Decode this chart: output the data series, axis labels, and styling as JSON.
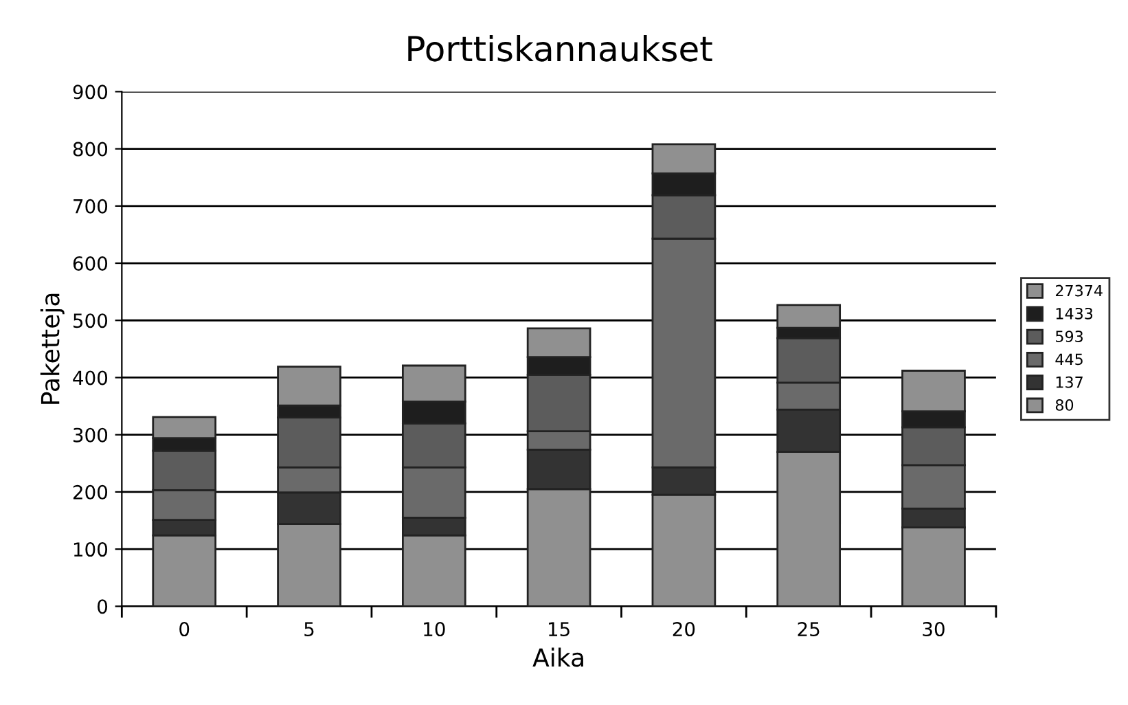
{
  "chart_data": {
    "type": "bar",
    "title": "Porttiskannaukset",
    "xlabel": "Aika",
    "ylabel": "Paketteja",
    "stacked": true,
    "categories": [
      "0",
      "5",
      "10",
      "15",
      "20",
      "25",
      "30"
    ],
    "series": [
      {
        "name": "80",
        "color": "#909090",
        "values": [
          124,
          144,
          124,
          205,
          195,
          270,
          138
        ]
      },
      {
        "name": "137",
        "color": "#333333",
        "values": [
          27,
          55,
          31,
          69,
          48,
          74,
          33
        ]
      },
      {
        "name": "445",
        "color": "#6a6a6a",
        "values": [
          52,
          44,
          88,
          32,
          400,
          47,
          76
        ]
      },
      {
        "name": "593",
        "color": "#5c5c5c",
        "values": [
          69,
          87,
          77,
          99,
          76,
          78,
          66
        ]
      },
      {
        "name": "1433",
        "color": "#1e1e1e",
        "values": [
          22,
          21,
          38,
          31,
          38,
          18,
          28
        ]
      },
      {
        "name": "27374",
        "color": "#909090",
        "values": [
          37,
          68,
          63,
          50,
          51,
          40,
          71
        ]
      }
    ],
    "ylim": [
      0,
      900
    ],
    "yticks": [
      0,
      100,
      200,
      300,
      400,
      500,
      600,
      700,
      800,
      900
    ],
    "grid": "y",
    "legend": "right"
  }
}
